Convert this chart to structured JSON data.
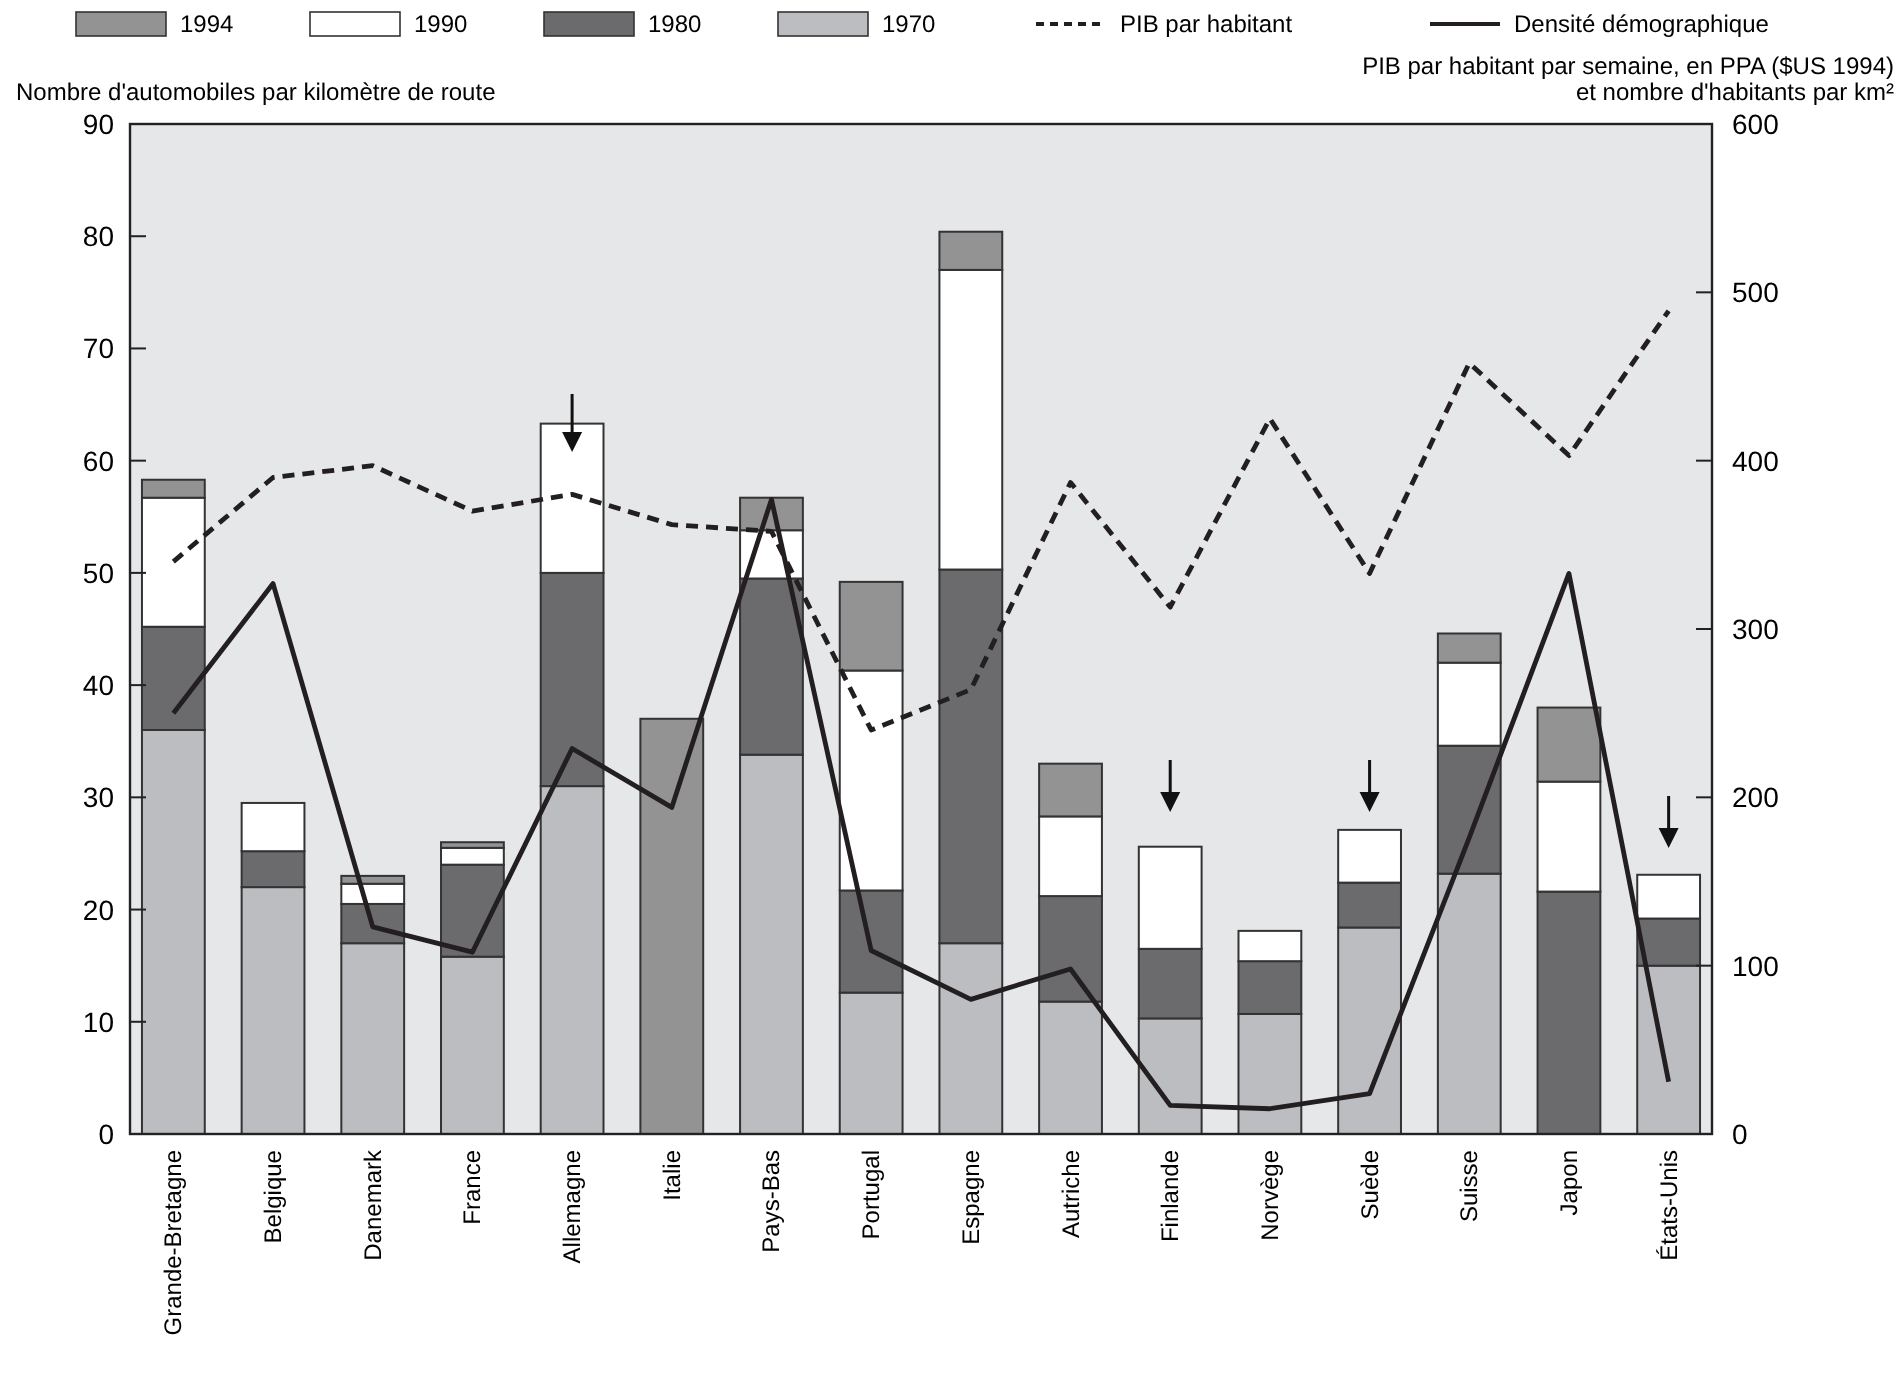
{
  "chart_data": {
    "type": "bar",
    "stacked": true,
    "ylabel": "Nombre d'automobiles par kilomètre de route",
    "y2label": "PIB par habitant par semaine, en PPA ($US 1994)\net nombre d'habitants par km²",
    "categories": [
      "Grande-Bretagne",
      "Belgique",
      "Danemark",
      "France",
      "Allemagne",
      "Italie",
      "Pays-Bas",
      "Portugal",
      "Espagne",
      "Autriche",
      "Finlande",
      "Norvège",
      "Suède",
      "Suisse",
      "Japon",
      "États-Unis"
    ],
    "series": [
      {
        "name": "1970",
        "color": "#bcbdc0",
        "values": [
          36,
          22,
          17,
          15.8,
          31,
          null,
          33.8,
          12.6,
          17,
          11.8,
          10.3,
          10.7,
          18.4,
          23.2,
          null,
          15
        ]
      },
      {
        "name": "1980",
        "color": "#6b6b6e",
        "values": [
          9.2,
          3.2,
          3.5,
          8.2,
          19,
          null,
          15.7,
          9.1,
          33.3,
          9.4,
          6.2,
          4.7,
          4,
          11.4,
          21.6,
          4.2
        ]
      },
      {
        "name": "1990",
        "color": "#ffffff",
        "values": [
          11.5,
          4.3,
          1.8,
          1.5,
          13.3,
          null,
          4.3,
          19.6,
          26.7,
          7.1,
          9.1,
          2.7,
          4.7,
          7.4,
          9.8,
          3.9
        ]
      },
      {
        "name": "1994",
        "color": "#939393",
        "values": [
          1.6,
          null,
          0.7,
          0.5,
          null,
          37,
          2.9,
          7.9,
          3.4,
          4.7,
          null,
          null,
          null,
          2.6,
          6.6,
          null
        ]
      },
      {
        "name": "PIB par habitant",
        "type": "line",
        "axis": "y2",
        "line_style": "dashed",
        "color": "#231f20",
        "values": [
          340,
          390,
          397,
          370,
          380,
          362,
          358,
          240,
          264,
          387,
          313,
          425,
          333,
          458,
          403,
          489
        ]
      },
      {
        "name": "Densité démographique",
        "type": "line",
        "axis": "y2",
        "line_style": "solid",
        "color": "#231f20",
        "values": [
          250,
          327,
          123,
          108,
          229,
          194,
          377,
          109,
          80,
          98,
          17,
          15,
          24,
          176,
          333,
          31
        ]
      }
    ],
    "ylim": [
      0,
      90
    ],
    "yticks": [
      0,
      10,
      20,
      30,
      40,
      50,
      60,
      70,
      80,
      90
    ],
    "y2lim": [
      0,
      600
    ],
    "y2ticks": [
      0,
      100,
      200,
      300,
      400,
      500,
      600
    ],
    "legend": "top",
    "grid": false
  }
}
